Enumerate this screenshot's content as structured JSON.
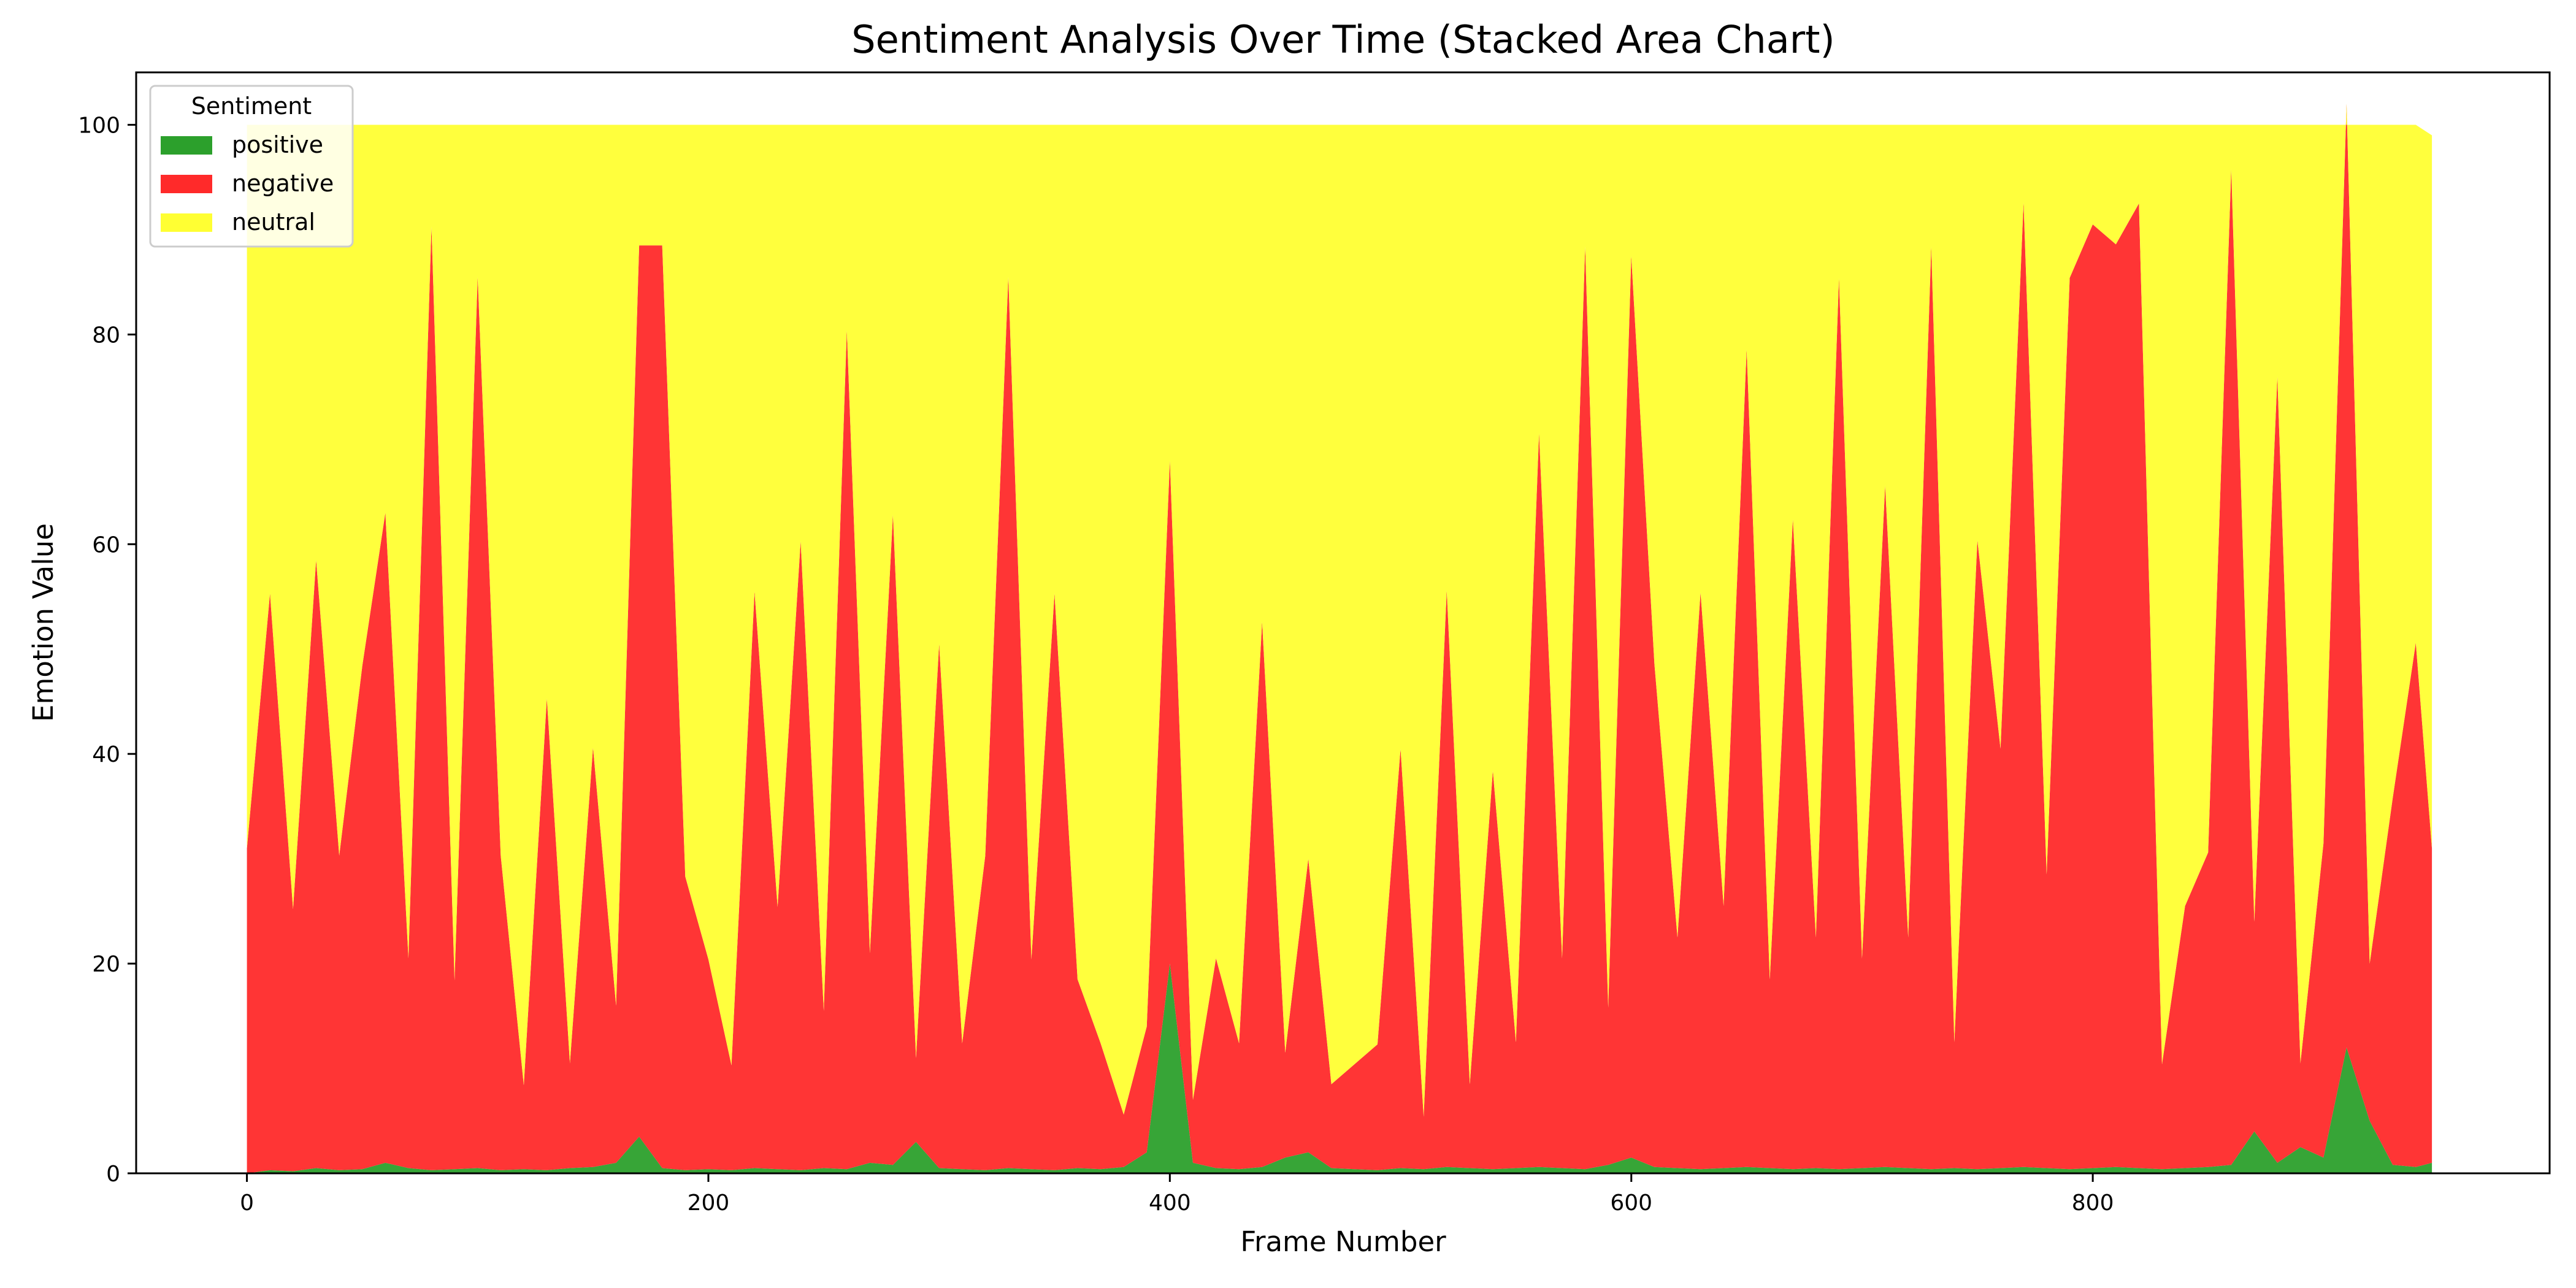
{
  "chart_data": {
    "type": "area",
    "stacked": true,
    "title": "Sentiment Analysis Over Time (Stacked Area Chart)",
    "xlabel": "Frame Number",
    "ylabel": "Emotion Value",
    "xlim": [
      -48,
      998
    ],
    "ylim": [
      0,
      105
    ],
    "xticks": [
      0,
      200,
      400,
      600,
      800
    ],
    "yticks": [
      0,
      20,
      40,
      60,
      80,
      100
    ],
    "grid": false,
    "legend": {
      "title": "Sentiment",
      "placement": "top-left"
    },
    "x": [
      0,
      10,
      20,
      30,
      40,
      50,
      60,
      70,
      80,
      90,
      100,
      110,
      120,
      130,
      140,
      150,
      160,
      170,
      180,
      190,
      200,
      210,
      220,
      230,
      240,
      250,
      260,
      270,
      280,
      290,
      300,
      310,
      320,
      330,
      340,
      350,
      360,
      370,
      380,
      390,
      400,
      410,
      420,
      430,
      440,
      450,
      460,
      470,
      480,
      490,
      500,
      510,
      520,
      530,
      540,
      550,
      560,
      570,
      580,
      590,
      600,
      610,
      620,
      630,
      640,
      650,
      660,
      670,
      680,
      690,
      700,
      710,
      720,
      730,
      740,
      750,
      760,
      770,
      780,
      790,
      800,
      810,
      820,
      830,
      840,
      850,
      860,
      870,
      880,
      890,
      900,
      910,
      920,
      930,
      940,
      947
    ],
    "series": [
      {
        "name": "positive",
        "color": "#2ca02c",
        "values": [
          0,
          0.3,
          0.2,
          0.5,
          0.3,
          0.4,
          1.0,
          0.5,
          0.3,
          0.4,
          0.5,
          0.3,
          0.4,
          0.3,
          0.5,
          0.6,
          1.0,
          3.5,
          0.5,
          0.3,
          0.4,
          0.3,
          0.5,
          0.4,
          0.3,
          0.5,
          0.4,
          1.0,
          0.8,
          3.0,
          0.5,
          0.4,
          0.3,
          0.5,
          0.4,
          0.3,
          0.5,
          0.4,
          0.6,
          2.0,
          20.0,
          1.0,
          0.5,
          0.4,
          0.6,
          1.5,
          2.0,
          0.5,
          0.4,
          0.3,
          0.5,
          0.4,
          0.6,
          0.5,
          0.4,
          0.5,
          0.6,
          0.5,
          0.4,
          0.8,
          1.5,
          0.6,
          0.5,
          0.4,
          0.5,
          0.6,
          0.5,
          0.4,
          0.5,
          0.4,
          0.5,
          0.6,
          0.5,
          0.4,
          0.5,
          0.4,
          0.5,
          0.6,
          0.5,
          0.4,
          0.5,
          0.6,
          0.5,
          0.4,
          0.5,
          0.6,
          0.8,
          4.0,
          1.0,
          2.5,
          1.5,
          12.0,
          5.0,
          0.8,
          0.6,
          1.0
        ]
      },
      {
        "name": "negative",
        "color": "#ff2a2a",
        "values": [
          31,
          55,
          25,
          58,
          30,
          48,
          62,
          20,
          90,
          18,
          85,
          30,
          8,
          45,
          10,
          40,
          15,
          85,
          88,
          28,
          20,
          10,
          55,
          25,
          60,
          15,
          80,
          20,
          62,
          8,
          50,
          12,
          30,
          85,
          20,
          55,
          18,
          12,
          5,
          12,
          48,
          6,
          20,
          12,
          52,
          10,
          28,
          8,
          10,
          12,
          40,
          5,
          55,
          8,
          38,
          12,
          70,
          20,
          88,
          15,
          86,
          48,
          22,
          55,
          25,
          78,
          18,
          62,
          22,
          85,
          20,
          65,
          22,
          88,
          12,
          60,
          40,
          92,
          28,
          85,
          90,
          88,
          92,
          10,
          25,
          30,
          95,
          20,
          75,
          8,
          30,
          90,
          15,
          35,
          50,
          30
        ]
      },
      {
        "name": "neutral",
        "color": "#ffff33",
        "values": [
          69,
          44.7,
          74.8,
          41.5,
          69.7,
          51.6,
          37,
          79.5,
          9.7,
          81.6,
          14.5,
          69.7,
          91.6,
          54.7,
          89.5,
          59.4,
          84,
          11.5,
          11.5,
          71.7,
          79.6,
          89.7,
          44.5,
          74.6,
          39.7,
          84.5,
          19.6,
          79,
          37.2,
          89,
          49.5,
          87.6,
          69.7,
          14.5,
          79.6,
          44.7,
          81.5,
          87.6,
          94.4,
          86,
          32,
          93,
          79.5,
          87.6,
          47.4,
          88.5,
          70,
          91.5,
          89.6,
          87.7,
          59.5,
          94.6,
          44.4,
          91.5,
          61.6,
          87.5,
          29.4,
          79.5,
          11.6,
          84.2,
          12.5,
          51.4,
          77.5,
          44.6,
          74.5,
          21.4,
          81.5,
          37.6,
          77.5,
          14.6,
          79.5,
          34.4,
          77.5,
          11.6,
          87.5,
          39.6,
          59.5,
          7.4,
          71.5,
          14.6,
          9.5,
          11.4,
          7.5,
          89.6,
          74.5,
          69.4,
          4.2,
          76,
          24,
          89.5,
          68.5,
          -2,
          80,
          64.2,
          49.4,
          68
        ]
      }
    ]
  }
}
